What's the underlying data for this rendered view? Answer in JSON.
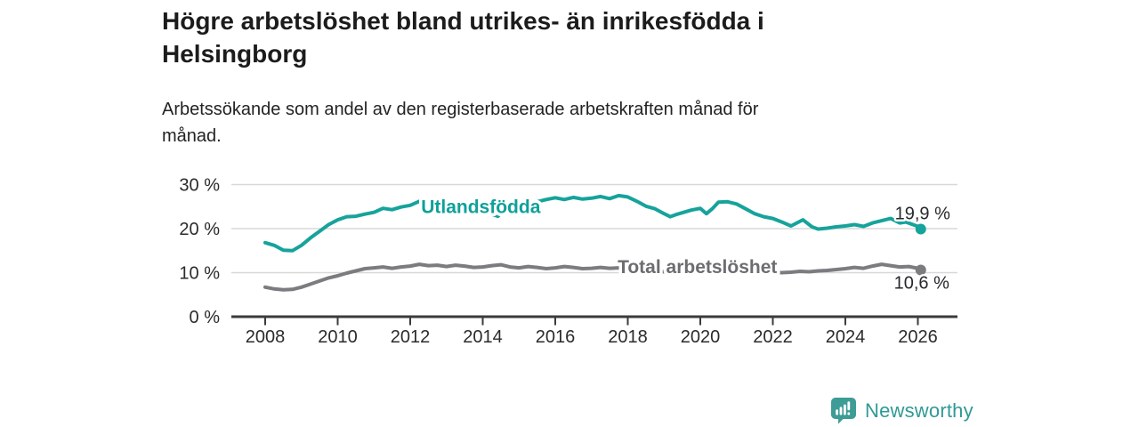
{
  "header": {
    "title": "Högre arbetslöshet bland utrikes- än inrikesfödda i Helsingborg",
    "title_lines": [
      "Högre arbetslöshet bland utrikes- än inrikesfödda i",
      "Helsingborg"
    ],
    "subtitle": "Arbetssökande som andel av den registerbaserade arbetskraften månad för månad.",
    "subtitle_lines": [
      "Arbetssökande som andel av den registerbaserade arbetskraften månad för",
      "månad."
    ]
  },
  "chart_data": {
    "type": "line",
    "unit": "%",
    "grid": "horizontal",
    "ylim": [
      0,
      30
    ],
    "xlim": [
      2007.1,
      2027.1
    ],
    "y_ticks": [
      0,
      10,
      20,
      30
    ],
    "y_tick_labels": [
      "0 %",
      "10 %",
      "20 %",
      "30 %"
    ],
    "x_ticks": [
      2008,
      2010,
      2012,
      2014,
      2016,
      2018,
      2020,
      2022,
      2024,
      2026
    ],
    "x_tick_labels": [
      "2008",
      "2010",
      "2012",
      "2014",
      "2016",
      "2018",
      "2020",
      "2022",
      "2024",
      "2026"
    ],
    "colors": {
      "utlandsfodda": "#16a39b",
      "total": "#7b7b80",
      "total_label": "#6c6c71",
      "gridline": "#d8d8d8",
      "axis": "#3b3b3b",
      "end_label_text": "#26282b"
    },
    "series": [
      {
        "name": "Utlandsfödda",
        "id": "utlandsfodda",
        "color": "#16a39b",
        "label_color": "#0fa099",
        "label_at": [
          2012.3,
          24.9
        ],
        "end_value": 19.9,
        "end_label": "19,9 %",
        "points": [
          [
            2008,
            16.8
          ],
          [
            2008.25,
            16.2
          ],
          [
            2008.5,
            15.1
          ],
          [
            2008.75,
            15
          ],
          [
            2009,
            16.2
          ],
          [
            2009.25,
            17.9
          ],
          [
            2009.5,
            19.4
          ],
          [
            2009.75,
            20.9
          ],
          [
            2010,
            22
          ],
          [
            2010.25,
            22.7
          ],
          [
            2010.5,
            22.8
          ],
          [
            2010.75,
            23.3
          ],
          [
            2011,
            23.7
          ],
          [
            2011.25,
            24.6
          ],
          [
            2011.5,
            24.3
          ],
          [
            2011.75,
            24.9
          ],
          [
            2012,
            25.3
          ],
          [
            2012.25,
            26.2
          ],
          [
            2012.5,
            25.8
          ],
          [
            2012.75,
            25.1
          ],
          [
            2013,
            25
          ],
          [
            2013.25,
            25.4
          ],
          [
            2013.5,
            24.9
          ],
          [
            2013.75,
            24.4
          ],
          [
            2014,
            24.2
          ],
          [
            2014.25,
            23.3
          ],
          [
            2014.42,
            22.8
          ],
          [
            2014.58,
            24.1
          ],
          [
            2014.75,
            24.9
          ],
          [
            2015,
            25.3
          ],
          [
            2015.25,
            25.8
          ],
          [
            2015.5,
            26.1
          ],
          [
            2015.75,
            26.6
          ],
          [
            2016,
            27
          ],
          [
            2016.25,
            26.6
          ],
          [
            2016.5,
            27.1
          ],
          [
            2016.75,
            26.7
          ],
          [
            2017,
            26.9
          ],
          [
            2017.25,
            27.3
          ],
          [
            2017.5,
            26.8
          ],
          [
            2017.75,
            27.5
          ],
          [
            2018,
            27.2
          ],
          [
            2018.25,
            26.2
          ],
          [
            2018.5,
            25.1
          ],
          [
            2018.75,
            24.5
          ],
          [
            2019,
            23.4
          ],
          [
            2019.17,
            22.7
          ],
          [
            2019.33,
            23.2
          ],
          [
            2019.5,
            23.6
          ],
          [
            2019.75,
            24.2
          ],
          [
            2020,
            24.6
          ],
          [
            2020.17,
            23.4
          ],
          [
            2020.33,
            24.5
          ],
          [
            2020.5,
            26
          ],
          [
            2020.75,
            26.1
          ],
          [
            2021,
            25.6
          ],
          [
            2021.25,
            24.5
          ],
          [
            2021.5,
            23.4
          ],
          [
            2021.75,
            22.7
          ],
          [
            2022,
            22.3
          ],
          [
            2022.25,
            21.5
          ],
          [
            2022.5,
            20.6
          ],
          [
            2022.83,
            22
          ],
          [
            2023.08,
            20.4
          ],
          [
            2023.25,
            19.9
          ],
          [
            2023.5,
            20.1
          ],
          [
            2023.75,
            20.4
          ],
          [
            2024,
            20.6
          ],
          [
            2024.25,
            20.9
          ],
          [
            2024.5,
            20.5
          ],
          [
            2024.75,
            21.3
          ],
          [
            2025,
            21.8
          ],
          [
            2025.25,
            22.3
          ],
          [
            2025.5,
            21.3
          ],
          [
            2025.67,
            21.5
          ],
          [
            2026,
            20.5
          ],
          [
            2026.08,
            19.9
          ]
        ]
      },
      {
        "name": "Total arbetslöshet",
        "id": "total",
        "color": "#7b7b80",
        "label_color": "#6c6c71",
        "label_at": [
          2017.72,
          11.3
        ],
        "end_value": 10.6,
        "end_label": "10,6 %",
        "points": [
          [
            2008,
            6.7
          ],
          [
            2008.25,
            6.3
          ],
          [
            2008.5,
            6.1
          ],
          [
            2008.75,
            6.2
          ],
          [
            2009,
            6.7
          ],
          [
            2009.25,
            7.4
          ],
          [
            2009.5,
            8.1
          ],
          [
            2009.75,
            8.8
          ],
          [
            2010,
            9.3
          ],
          [
            2010.25,
            9.9
          ],
          [
            2010.5,
            10.4
          ],
          [
            2010.75,
            10.9
          ],
          [
            2011,
            11.1
          ],
          [
            2011.25,
            11.3
          ],
          [
            2011.5,
            11
          ],
          [
            2011.75,
            11.3
          ],
          [
            2012,
            11.5
          ],
          [
            2012.25,
            11.9
          ],
          [
            2012.5,
            11.6
          ],
          [
            2012.75,
            11.7
          ],
          [
            2013,
            11.4
          ],
          [
            2013.25,
            11.7
          ],
          [
            2013.5,
            11.5
          ],
          [
            2013.75,
            11.2
          ],
          [
            2014,
            11.3
          ],
          [
            2014.25,
            11.6
          ],
          [
            2014.5,
            11.8
          ],
          [
            2014.75,
            11.3
          ],
          [
            2015,
            11.1
          ],
          [
            2015.25,
            11.4
          ],
          [
            2015.5,
            11.2
          ],
          [
            2015.75,
            10.9
          ],
          [
            2016,
            11.1
          ],
          [
            2016.25,
            11.4
          ],
          [
            2016.5,
            11.2
          ],
          [
            2016.75,
            10.9
          ],
          [
            2017,
            11
          ],
          [
            2017.25,
            11.2
          ],
          [
            2017.5,
            11
          ],
          [
            2017.75,
            11.1
          ],
          [
            2018,
            10.9
          ],
          [
            2018.25,
            10.7
          ],
          [
            2018.5,
            10.5
          ],
          [
            2018.75,
            10.4
          ],
          [
            2019,
            10.2
          ],
          [
            2019.25,
            10.3
          ],
          [
            2019.5,
            10.1
          ],
          [
            2019.75,
            10.4
          ],
          [
            2020,
            10.6
          ],
          [
            2020.25,
            11.3
          ],
          [
            2020.5,
            11.8
          ],
          [
            2020.75,
            11.6
          ],
          [
            2021,
            11.4
          ],
          [
            2021.25,
            11
          ],
          [
            2021.5,
            10.6
          ],
          [
            2021.75,
            10.3
          ],
          [
            2022,
            10.1
          ],
          [
            2022.25,
            10
          ],
          [
            2022.5,
            10.1
          ],
          [
            2022.75,
            10.3
          ],
          [
            2023,
            10.2
          ],
          [
            2023.25,
            10.4
          ],
          [
            2023.5,
            10.5
          ],
          [
            2023.75,
            10.7
          ],
          [
            2024,
            10.9
          ],
          [
            2024.25,
            11.2
          ],
          [
            2024.5,
            11
          ],
          [
            2024.75,
            11.5
          ],
          [
            2025,
            11.9
          ],
          [
            2025.25,
            11.6
          ],
          [
            2025.5,
            11.3
          ],
          [
            2025.75,
            11.4
          ],
          [
            2026,
            11
          ],
          [
            2026.08,
            10.6
          ]
        ]
      }
    ]
  },
  "footer": {
    "brand": "Newsworthy",
    "brand_color": "#2f9a94",
    "logo_color": "#3e9c96",
    "logo_icon": "speech-bubble-bar-chart"
  }
}
